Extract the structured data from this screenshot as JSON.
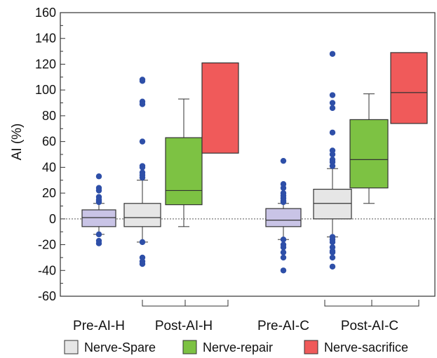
{
  "chart_data": {
    "type": "box",
    "ylabel": "AI (%)",
    "ylim": [
      -60,
      160
    ],
    "yticks": [
      -60,
      -40,
      -20,
      0,
      20,
      40,
      60,
      80,
      100,
      120,
      140,
      160
    ],
    "reference_line": 0,
    "groups": [
      {
        "label": "Pre-AI-H",
        "bracket": false
      },
      {
        "label": "Post-AI-H",
        "bracket": true
      },
      {
        "label": "Pre-AI-C",
        "bracket": false
      },
      {
        "label": "Post-AI-C",
        "bracket": true
      }
    ],
    "legend": [
      {
        "name": "Nerve-Spare",
        "color": "#e6e6e6"
      },
      {
        "name": "Nerve-repair",
        "color": "#7dc243"
      },
      {
        "name": "Nerve-sacrifice",
        "color": "#f05a5a"
      }
    ],
    "boxes": [
      {
        "group": 0,
        "fill": "#c9c4e6",
        "q1": -6,
        "median": 1,
        "q3": 7,
        "whisker_low": -12,
        "whisker_high": 12,
        "outliers": [
          33,
          24,
          22,
          17,
          15,
          14,
          13,
          -12,
          -17,
          -19
        ]
      },
      {
        "group": 1,
        "fill": "#e6e6e6",
        "q1": -6,
        "median": 1,
        "q3": 12,
        "whisker_low": -18,
        "whisker_high": 30,
        "outliers": [
          108,
          107,
          91,
          89,
          60,
          41,
          40,
          36,
          34,
          32,
          -18,
          -30,
          -33,
          -35
        ]
      },
      {
        "group": 1,
        "fill": "#7dc243",
        "q1": 11,
        "median": 22,
        "q3": 63,
        "whisker_low": -6,
        "whisker_high": 93,
        "outliers": []
      },
      {
        "group": 1,
        "fill": "#f05a5a",
        "q1": 51,
        "median": null,
        "q3": 121,
        "whisker_low": null,
        "whisker_high": null,
        "outliers": []
      },
      {
        "group": 2,
        "fill": "#c9c4e6",
        "q1": -6,
        "median": -1,
        "q3": 8,
        "whisker_low": -16,
        "whisker_high": 12,
        "outliers": [
          45,
          27,
          24,
          20,
          18,
          16,
          14,
          13,
          -16,
          -20,
          -22,
          -26,
          -30,
          -40
        ]
      },
      {
        "group": 3,
        "fill": "#e6e6e6",
        "q1": 0,
        "median": 12,
        "q3": 23,
        "whisker_low": -14,
        "whisker_high": 39,
        "outliers": [
          128,
          96,
          90,
          86,
          67,
          53,
          50,
          46,
          44,
          41,
          -14,
          -16,
          -18,
          -22,
          -25,
          -26,
          -30,
          -37
        ]
      },
      {
        "group": 3,
        "fill": "#7dc243",
        "q1": 24,
        "median": 46,
        "q3": 77,
        "whisker_low": 12,
        "whisker_high": 97,
        "outliers": []
      },
      {
        "group": 3,
        "fill": "#f05a5a",
        "q1": 74,
        "median": 98,
        "q3": 129,
        "whisker_low": null,
        "whisker_high": null,
        "outliers": []
      }
    ]
  }
}
